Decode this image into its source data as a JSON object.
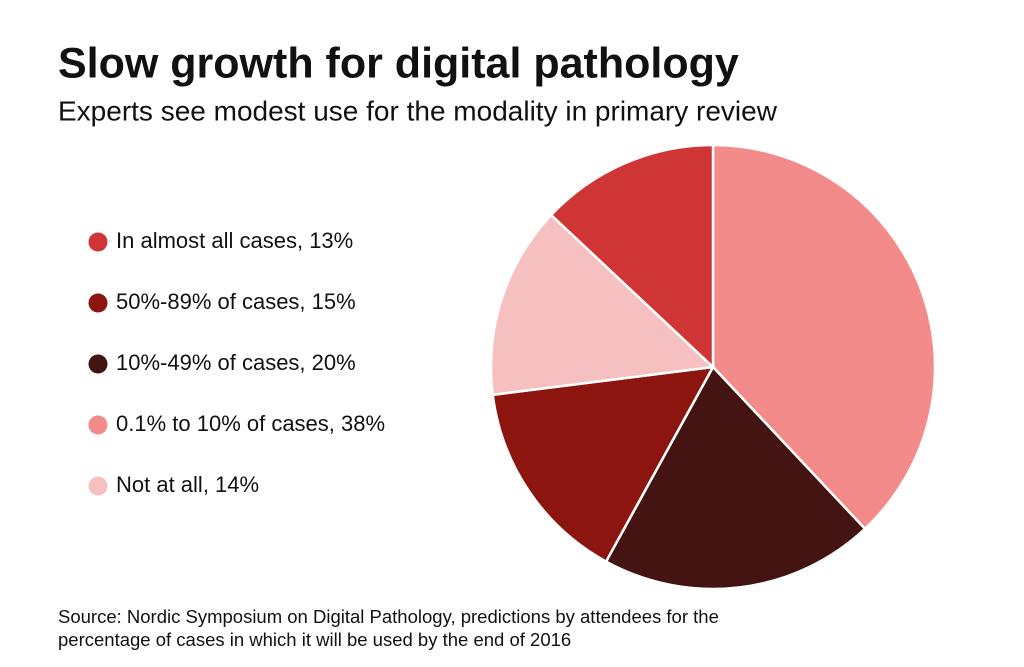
{
  "chart_data": {
    "type": "pie",
    "title": "Slow growth for digital pathology",
    "subtitle": "Experts see modest use for the modality in primary review",
    "categories": [
      "0.1% to 10% of cases, 38%",
      "10%-49% of cases, 20%",
      "50%-89% of cases, 15%",
      "Not at all, 14%",
      "In almost all cases, 13%"
    ],
    "values": [
      38,
      20,
      15,
      14,
      13
    ],
    "colors": [
      "#f28b8a",
      "#431412",
      "#8c150f",
      "#f6bfc0",
      "#cf3535"
    ],
    "legend": "left",
    "source": [
      "Source: Nordic Symposium on Digital Pathology, predictions by attendees for the",
      "percentage of cases in which it will be used by the end of 2016"
    ]
  }
}
